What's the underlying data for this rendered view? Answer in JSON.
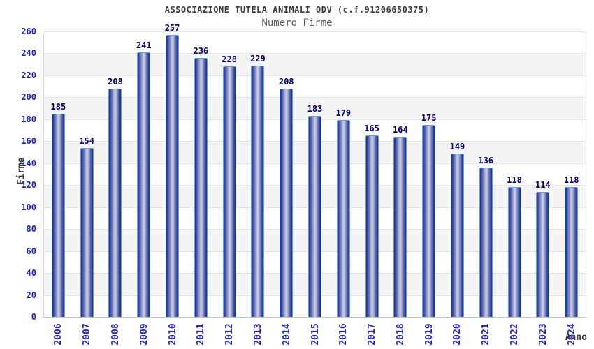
{
  "header": {
    "title": "ASSOCIAZIONE TUTELA ANIMALI ODV (c.f.91206650375)",
    "subtitle": "Numero Firme"
  },
  "chart_data": {
    "type": "bar",
    "title": "ASSOCIAZIONE TUTELA ANIMALI ODV (c.f.91206650375)",
    "subtitle": "Numero Firme",
    "xlabel": "Anno",
    "ylabel": "Firme",
    "categories": [
      "2006",
      "2007",
      "2008",
      "2009",
      "2010",
      "2011",
      "2012",
      "2013",
      "2014",
      "2015",
      "2016",
      "2017",
      "2018",
      "2019",
      "2020",
      "2021",
      "2022",
      "2023",
      "2024"
    ],
    "values": [
      185,
      154,
      208,
      241,
      257,
      236,
      228,
      229,
      208,
      183,
      179,
      165,
      164,
      175,
      149,
      136,
      118,
      114,
      118
    ],
    "ylim": [
      0,
      260
    ],
    "ytick_step": 20,
    "grid": "horizontal alternating bands every 20 units",
    "legend": "none",
    "colors": {
      "bar_dark": "#232c82",
      "bar_light": "#ccd2ea",
      "bar_border": "#56a0f0",
      "tick_blue": "#2222cc",
      "value_navy": "#00006e",
      "band_gray": "#f4f4f4",
      "grid_line": "#e3e3e3",
      "title_gray": "#3c3c3c",
      "subtitle_gray": "#5a5a5a"
    }
  }
}
